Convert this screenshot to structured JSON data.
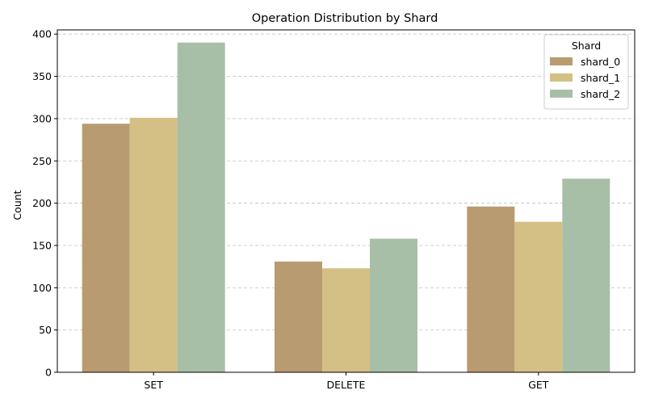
{
  "chart_data": {
    "type": "bar",
    "title": "Operation Distribution by Shard",
    "xlabel": "",
    "ylabel": "Count",
    "categories": [
      "SET",
      "DELETE",
      "GET"
    ],
    "series": [
      {
        "name": "shard_0",
        "values": [
          294,
          131,
          196
        ],
        "color": "#b99b71"
      },
      {
        "name": "shard_1",
        "values": [
          301,
          123,
          178
        ],
        "color": "#d4c085"
      },
      {
        "name": "shard_2",
        "values": [
          390,
          158,
          229
        ],
        "color": "#a7bfa6"
      }
    ],
    "ylim": [
      0,
      405
    ],
    "yticks": [
      0,
      50,
      100,
      150,
      200,
      250,
      300,
      350,
      400
    ],
    "grid": "y-dashed",
    "legend": {
      "title": "Shard",
      "placement": "top-right"
    }
  }
}
